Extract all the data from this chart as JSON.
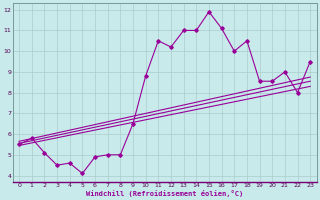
{
  "xlabel": "Windchill (Refroidissement éolien,°C)",
  "xlim": [
    -0.5,
    23.5
  ],
  "ylim": [
    3.7,
    12.3
  ],
  "yticks": [
    4,
    5,
    6,
    7,
    8,
    9,
    10,
    11,
    12
  ],
  "xticks": [
    0,
    1,
    2,
    3,
    4,
    5,
    6,
    7,
    8,
    9,
    10,
    11,
    12,
    13,
    14,
    15,
    16,
    17,
    18,
    19,
    20,
    21,
    22,
    23
  ],
  "bg_color": "#c8eaea",
  "line_color": "#990099",
  "grid_color": "#aacccc",
  "main_x": [
    0,
    1,
    2,
    3,
    4,
    5,
    6,
    7,
    8,
    9,
    10,
    11,
    12,
    13,
    14,
    15,
    16,
    17,
    18,
    19,
    20,
    21,
    22,
    23
  ],
  "main_y": [
    5.5,
    5.8,
    5.1,
    4.5,
    4.6,
    4.1,
    4.9,
    5.0,
    5.0,
    6.5,
    8.8,
    10.5,
    10.2,
    11.0,
    11.0,
    11.9,
    11.1,
    10.0,
    10.5,
    8.55,
    8.55,
    9.0,
    8.0,
    9.5
  ],
  "reg_lines": [
    {
      "x": [
        0,
        23
      ],
      "y": [
        5.45,
        8.3
      ]
    },
    {
      "x": [
        0,
        23
      ],
      "y": [
        5.55,
        8.55
      ]
    },
    {
      "x": [
        0,
        23
      ],
      "y": [
        5.65,
        8.75
      ]
    }
  ]
}
